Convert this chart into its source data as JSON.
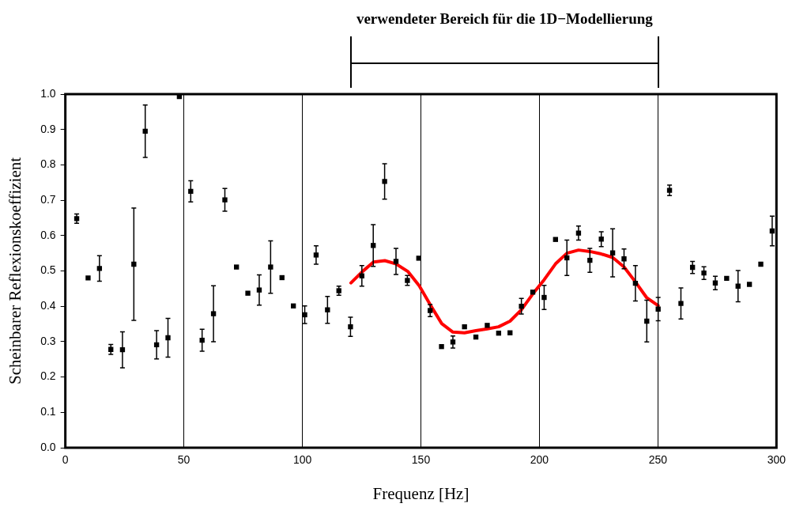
{
  "chart_data": {
    "type": "scatter",
    "xlabel": "Frequenz [Hz]",
    "ylabel": "Scheinbarer Reflexionskoeffizient",
    "xlim": [
      0,
      300
    ],
    "xticks": [
      0,
      50,
      100,
      150,
      200,
      250,
      300
    ],
    "ylim": [
      0,
      1
    ],
    "yticks": [
      {
        "value": 0,
        "label": "0.0"
      },
      {
        "value": 0.1,
        "label": "0.1"
      },
      {
        "value": 0.2,
        "label": "0.2"
      },
      {
        "value": 0.3,
        "label": "0.3"
      },
      {
        "value": 0.4,
        "label": "0.4"
      },
      {
        "value": 0.5,
        "label": "0.5"
      },
      {
        "value": 0.6,
        "label": "0.6"
      },
      {
        "value": 0.7,
        "label": "0.7"
      },
      {
        "value": 0.8,
        "label": "0.8"
      },
      {
        "value": 0.9,
        "label": "0.9"
      },
      {
        "value": 1,
        "label": "1.0"
      }
    ],
    "grid": "x",
    "legend": false,
    "marker": "square",
    "annotations": [
      "verwendeter Bereich für die 1D−Modellierung"
    ],
    "series": [
      {
        "type": "scatter",
        "color": "#000000",
        "x": [
          4.8,
          9.6,
          14.4,
          19.2,
          24.1,
          28.9,
          33.7,
          38.5,
          43.3,
          48.1,
          52.9,
          57.7,
          62.5,
          67.3,
          72.2,
          77.0,
          81.8,
          86.6,
          91.4,
          96.2,
          101.0,
          105.8,
          110.6,
          115.4,
          120.3,
          125.1,
          129.9,
          134.7,
          139.5,
          144.3,
          149.1,
          153.9,
          158.7,
          163.5,
          168.4,
          173.2,
          178.0,
          182.8,
          187.6,
          192.4,
          197.2,
          202.0,
          206.8,
          211.6,
          216.5,
          221.3,
          226.1,
          230.9,
          235.7,
          240.5,
          245.3,
          250.1,
          254.9,
          259.7,
          264.6,
          269.4,
          274.2,
          279.0,
          283.8,
          288.6,
          293.4,
          298.2
        ],
        "values": [
          0.648,
          0.48,
          0.507,
          0.278,
          0.277,
          0.519,
          0.895,
          0.291,
          0.311,
          0.993,
          0.725,
          0.304,
          0.379,
          0.701,
          0.511,
          0.437,
          0.446,
          0.511,
          0.481,
          0.401,
          0.376,
          0.545,
          0.39,
          0.444,
          0.342,
          0.486,
          0.572,
          0.753,
          0.527,
          0.473,
          0.536,
          0.388,
          0.286,
          0.299,
          0.342,
          0.313,
          0.346,
          0.324,
          0.325,
          0.4,
          0.44,
          0.425,
          0.589,
          0.537,
          0.607,
          0.53,
          0.59,
          0.551,
          0.534,
          0.465,
          0.358,
          0.392,
          0.728,
          0.408,
          0.51,
          0.494,
          0.466,
          0.479,
          0.457,
          0.462,
          0.519,
          0.613
        ],
        "errors": [
          0.013,
          null,
          0.036,
          0.014,
          0.051,
          0.159,
          0.074,
          0.04,
          0.055,
          null,
          0.03,
          0.031,
          0.079,
          0.032,
          null,
          null,
          0.043,
          0.074,
          null,
          null,
          0.025,
          0.026,
          0.038,
          0.013,
          0.027,
          0.029,
          0.059,
          0.05,
          0.037,
          0.014,
          null,
          0.017,
          null,
          0.017,
          null,
          null,
          null,
          null,
          null,
          0.022,
          null,
          0.034,
          null,
          0.05,
          0.02,
          0.034,
          0.021,
          0.068,
          0.028,
          0.05,
          0.059,
          0.033,
          0.015,
          0.044,
          0.017,
          0.018,
          0.019,
          null,
          0.044,
          null,
          null,
          0.042
        ]
      },
      {
        "type": "line",
        "color": "#ff0000",
        "marker": "none",
        "x": [
          120.5,
          125.3,
          130,
          134.8,
          139.5,
          144.6,
          149.3,
          153.9,
          158.8,
          163.5,
          168.4,
          173.2,
          178,
          182.8,
          187.6,
          192.4,
          197.2,
          202,
          206.8,
          211.6,
          216.5,
          221.3,
          226.1,
          230.9,
          235.7,
          240.5,
          245.3,
          250.1
        ],
        "values": [
          0.466,
          0.498,
          0.525,
          0.529,
          0.52,
          0.498,
          0.458,
          0.405,
          0.351,
          0.327,
          0.325,
          0.331,
          0.336,
          0.342,
          0.358,
          0.39,
          0.435,
          0.475,
          0.52,
          0.55,
          0.559,
          0.555,
          0.548,
          0.538,
          0.511,
          0.469,
          0.424,
          0.402
        ]
      }
    ]
  }
}
